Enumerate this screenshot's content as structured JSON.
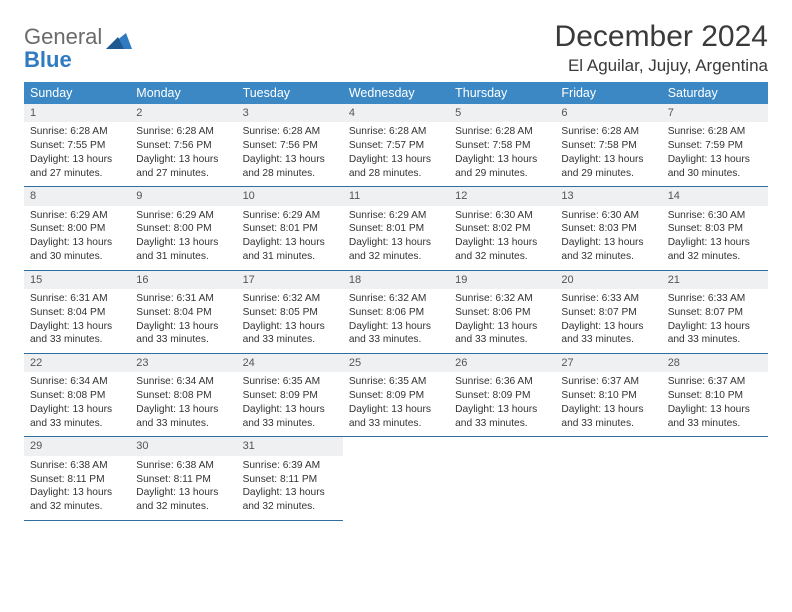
{
  "logo": {
    "word1": "General",
    "word2": "Blue"
  },
  "title": "December 2024",
  "subtitle": "El Aguilar, Jujuy, Argentina",
  "colors": {
    "header_bg": "#3b88c4",
    "header_text": "#ffffff",
    "daynum_bg": "#eef0f1",
    "row_divider": "#2d6fa3",
    "logo_gray": "#6b6b6b",
    "logo_blue": "#2f7ac0"
  },
  "day_names": [
    "Sunday",
    "Monday",
    "Tuesday",
    "Wednesday",
    "Thursday",
    "Friday",
    "Saturday"
  ],
  "label_sunrise": "Sunrise: ",
  "label_sunset": "Sunset: ",
  "label_daylight": "Daylight: ",
  "weeks": [
    [
      {
        "n": "1",
        "sr": "6:28 AM",
        "ss": "7:55 PM",
        "dl": "13 hours and 27 minutes."
      },
      {
        "n": "2",
        "sr": "6:28 AM",
        "ss": "7:56 PM",
        "dl": "13 hours and 27 minutes."
      },
      {
        "n": "3",
        "sr": "6:28 AM",
        "ss": "7:56 PM",
        "dl": "13 hours and 28 minutes."
      },
      {
        "n": "4",
        "sr": "6:28 AM",
        "ss": "7:57 PM",
        "dl": "13 hours and 28 minutes."
      },
      {
        "n": "5",
        "sr": "6:28 AM",
        "ss": "7:58 PM",
        "dl": "13 hours and 29 minutes."
      },
      {
        "n": "6",
        "sr": "6:28 AM",
        "ss": "7:58 PM",
        "dl": "13 hours and 29 minutes."
      },
      {
        "n": "7",
        "sr": "6:28 AM",
        "ss": "7:59 PM",
        "dl": "13 hours and 30 minutes."
      }
    ],
    [
      {
        "n": "8",
        "sr": "6:29 AM",
        "ss": "8:00 PM",
        "dl": "13 hours and 30 minutes."
      },
      {
        "n": "9",
        "sr": "6:29 AM",
        "ss": "8:00 PM",
        "dl": "13 hours and 31 minutes."
      },
      {
        "n": "10",
        "sr": "6:29 AM",
        "ss": "8:01 PM",
        "dl": "13 hours and 31 minutes."
      },
      {
        "n": "11",
        "sr": "6:29 AM",
        "ss": "8:01 PM",
        "dl": "13 hours and 32 minutes."
      },
      {
        "n": "12",
        "sr": "6:30 AM",
        "ss": "8:02 PM",
        "dl": "13 hours and 32 minutes."
      },
      {
        "n": "13",
        "sr": "6:30 AM",
        "ss": "8:03 PM",
        "dl": "13 hours and 32 minutes."
      },
      {
        "n": "14",
        "sr": "6:30 AM",
        "ss": "8:03 PM",
        "dl": "13 hours and 32 minutes."
      }
    ],
    [
      {
        "n": "15",
        "sr": "6:31 AM",
        "ss": "8:04 PM",
        "dl": "13 hours and 33 minutes."
      },
      {
        "n": "16",
        "sr": "6:31 AM",
        "ss": "8:04 PM",
        "dl": "13 hours and 33 minutes."
      },
      {
        "n": "17",
        "sr": "6:32 AM",
        "ss": "8:05 PM",
        "dl": "13 hours and 33 minutes."
      },
      {
        "n": "18",
        "sr": "6:32 AM",
        "ss": "8:06 PM",
        "dl": "13 hours and 33 minutes."
      },
      {
        "n": "19",
        "sr": "6:32 AM",
        "ss": "8:06 PM",
        "dl": "13 hours and 33 minutes."
      },
      {
        "n": "20",
        "sr": "6:33 AM",
        "ss": "8:07 PM",
        "dl": "13 hours and 33 minutes."
      },
      {
        "n": "21",
        "sr": "6:33 AM",
        "ss": "8:07 PM",
        "dl": "13 hours and 33 minutes."
      }
    ],
    [
      {
        "n": "22",
        "sr": "6:34 AM",
        "ss": "8:08 PM",
        "dl": "13 hours and 33 minutes."
      },
      {
        "n": "23",
        "sr": "6:34 AM",
        "ss": "8:08 PM",
        "dl": "13 hours and 33 minutes."
      },
      {
        "n": "24",
        "sr": "6:35 AM",
        "ss": "8:09 PM",
        "dl": "13 hours and 33 minutes."
      },
      {
        "n": "25",
        "sr": "6:35 AM",
        "ss": "8:09 PM",
        "dl": "13 hours and 33 minutes."
      },
      {
        "n": "26",
        "sr": "6:36 AM",
        "ss": "8:09 PM",
        "dl": "13 hours and 33 minutes."
      },
      {
        "n": "27",
        "sr": "6:37 AM",
        "ss": "8:10 PM",
        "dl": "13 hours and 33 minutes."
      },
      {
        "n": "28",
        "sr": "6:37 AM",
        "ss": "8:10 PM",
        "dl": "13 hours and 33 minutes."
      }
    ],
    [
      {
        "n": "29",
        "sr": "6:38 AM",
        "ss": "8:11 PM",
        "dl": "13 hours and 32 minutes."
      },
      {
        "n": "30",
        "sr": "6:38 AM",
        "ss": "8:11 PM",
        "dl": "13 hours and 32 minutes."
      },
      {
        "n": "31",
        "sr": "6:39 AM",
        "ss": "8:11 PM",
        "dl": "13 hours and 32 minutes."
      },
      null,
      null,
      null,
      null
    ]
  ]
}
